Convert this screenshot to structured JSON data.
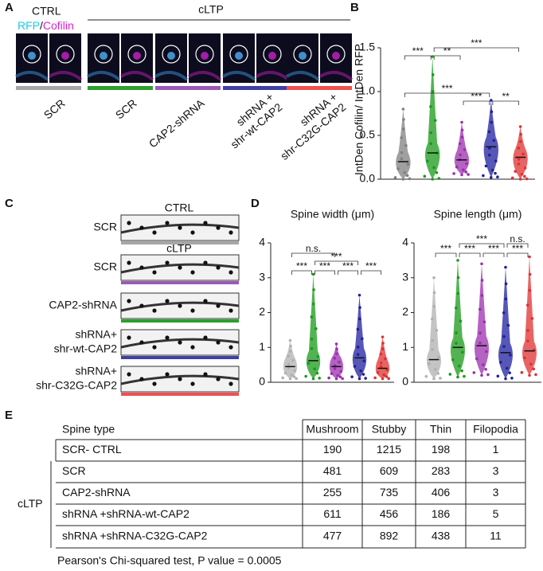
{
  "panel_a": {
    "label": "A",
    "ctrl": "CTRL",
    "cltp": "cLTP",
    "stain": [
      "RFP",
      "/",
      "Cofilin"
    ],
    "colors": [
      "#a6a6a6",
      "#2ca02c",
      "#9b59b6",
      "#3f3fa6",
      "#f05050"
    ],
    "groups": [
      [
        "SCR"
      ],
      [
        "SCR"
      ],
      [
        "CAP2-shRNA"
      ],
      [
        "shRNA +",
        "shr-wt-CAP2"
      ],
      [
        "shRNA +",
        "shr-C32G-CAP2"
      ]
    ]
  },
  "panel_c": {
    "label": "C",
    "ctrl": "CTRL",
    "cltp": "cLTP",
    "colors": [
      "#a6a6a6",
      "#9b59b6",
      "#2ca02c",
      "#3f3fa6",
      "#f05050"
    ],
    "rows": [
      [
        "SCR"
      ],
      [
        "SCR"
      ],
      [
        "CAP2-shRNA"
      ],
      [
        "shRNA+",
        "shr-wt-CAP2"
      ],
      [
        "shRNA+",
        "shr-C32G-CAP2"
      ]
    ]
  },
  "panel_labels": {
    "b": "B",
    "d": "D"
  },
  "chart_data": [
    {
      "type": "dot",
      "y_label": "IntDen Cofilin/ IntDen RFP",
      "ylim": [
        0,
        1.5
      ],
      "yticks": [
        {
          "value": 0,
          "label": "0.0"
        },
        {
          "value": 0.5,
          "label": "0.5"
        },
        {
          "value": 1,
          "label": "1.0"
        },
        {
          "value": 1.5,
          "label": "1.5"
        }
      ],
      "colors": [
        "#808080",
        "#1a9a1a",
        "#9b2fae",
        "#1f1f9f",
        "#e03030"
      ],
      "values": [
        0.2,
        0.3,
        0.22,
        0.37,
        0.25
      ],
      "min": [
        0,
        0,
        0.05,
        0.02,
        0
      ],
      "max": [
        0.8,
        1.4,
        0.65,
        0.9,
        0.6
      ],
      "annotations": [
        "***",
        "**",
        "***",
        "***",
        "***",
        "**"
      ]
    },
    {
      "type": "violin",
      "title": "Spine width (μm)",
      "ylim": [
        0,
        4
      ],
      "yticks": [
        0,
        1,
        2,
        3,
        4
      ],
      "colors": [
        "#b0b0b0",
        "#1a9a1a",
        "#9b2fae",
        "#1f1f9f",
        "#e03030"
      ],
      "values": [
        0.45,
        0.62,
        0.45,
        0.7,
        0.4
      ],
      "min": [
        0.1,
        0.1,
        0.1,
        0.1,
        0.1
      ],
      "max": [
        1.2,
        3.1,
        1.1,
        2.5,
        1.3
      ],
      "annotations": [
        "n.s.",
        "***",
        "***",
        "***",
        "***",
        "***"
      ]
    },
    {
      "type": "violin",
      "title": "Spine length (μm)",
      "ylim": [
        0,
        4
      ],
      "yticks": [
        0,
        1,
        2,
        3,
        4
      ],
      "colors": [
        "#b0b0b0",
        "#1a9a1a",
        "#9b2fae",
        "#1f1f9f",
        "#e03030"
      ],
      "values": [
        0.65,
        1.0,
        1.05,
        0.85,
        0.9
      ],
      "min": [
        0.1,
        0.15,
        0.2,
        0.1,
        0.2
      ],
      "max": [
        3.0,
        3.5,
        3.4,
        3.3,
        3.6
      ],
      "annotations": [
        "***",
        "n.s.",
        "***",
        "***",
        "***",
        "***"
      ]
    }
  ],
  "table": {
    "label": "E",
    "header": [
      "Spine type",
      "Mushroom",
      "Stubby",
      "Thin",
      "Filopodia"
    ],
    "group": "cLTP",
    "rows": [
      [
        "SCR- CTRL",
        190,
        1215,
        198,
        1
      ],
      [
        "SCR",
        481,
        609,
        283,
        3
      ],
      [
        "CAP2-shRNA",
        255,
        735,
        406,
        3
      ],
      [
        "shRNA +shRNA-wt-CAP2",
        611,
        456,
        186,
        5
      ],
      [
        "shRNA +shRNA-C32G-CAP2",
        477,
        892,
        438,
        11
      ]
    ],
    "note": "Pearson's Chi-squared test, P value = 0.0005"
  }
}
